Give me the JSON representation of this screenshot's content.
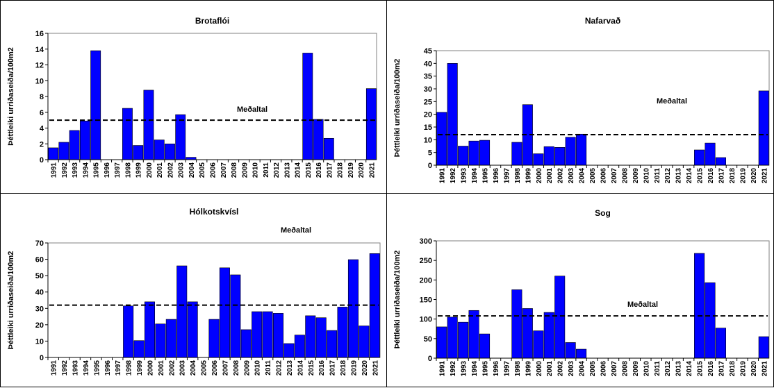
{
  "chart_data": [
    {
      "type": "bar",
      "title": "Brotaflói",
      "ylabel": "Þéttleiki urriðaseiða/100m2",
      "ylim": [
        0,
        16
      ],
      "yticks": [
        0,
        2,
        4,
        6,
        8,
        10,
        12,
        14,
        16
      ],
      "categories": [
        "1991",
        "1992",
        "1993",
        "1994",
        "1995",
        "1996",
        "1997",
        "1998",
        "1999",
        "2000",
        "2001",
        "2002",
        "2003",
        "2004",
        "2005",
        "2006",
        "2007",
        "2008",
        "2009",
        "2010",
        "2011",
        "2012",
        "2013",
        "2014",
        "2015",
        "2016",
        "2017",
        "2018",
        "2019",
        "2020",
        "2021"
      ],
      "values": [
        1.5,
        2.2,
        3.7,
        4.9,
        13.8,
        0,
        0,
        6.5,
        1.8,
        8.8,
        2.5,
        2.0,
        5.7,
        0.3,
        0,
        0,
        0,
        0,
        0,
        0,
        0,
        0,
        0,
        0,
        13.5,
        5.1,
        2.7,
        0,
        0,
        0,
        9.0
      ],
      "average": {
        "label": "Meðaltal",
        "value": 5.0
      },
      "bar_color": "#0000ff"
    },
    {
      "type": "bar",
      "title": "Nafarvað",
      "ylabel": "Þéttleiki urriðaseiða/100m2",
      "ylim": [
        0,
        45
      ],
      "yticks": [
        0,
        5,
        10,
        15,
        20,
        25,
        30,
        35,
        40,
        45
      ],
      "categories": [
        "1991",
        "1992",
        "1993",
        "1994",
        "1995",
        "1996",
        "1997",
        "1998",
        "1999",
        "2000",
        "2001",
        "2002",
        "2003",
        "2004",
        "2005",
        "2006",
        "2007",
        "2008",
        "2009",
        "2010",
        "2011",
        "2012",
        "2013",
        "2014",
        "2015",
        "2016",
        "2017",
        "2018",
        "2019",
        "2020",
        "2021"
      ],
      "values": [
        20.8,
        40.0,
        7.5,
        9.5,
        9.8,
        0,
        0,
        9.0,
        23.8,
        4.5,
        7.3,
        7.0,
        11.0,
        12.2,
        0,
        0,
        0,
        0,
        0,
        0,
        0,
        0,
        0,
        0,
        6.0,
        8.7,
        3.0,
        0,
        0,
        0,
        29.2
      ],
      "average": {
        "label": "Meðaltal",
        "value": 12.0
      },
      "bar_color": "#0000ff"
    },
    {
      "type": "bar",
      "title": "Hólkotskvísl",
      "ylabel": "Þéttleiki urriðaseiða/100m2",
      "ylim": [
        0,
        70
      ],
      "yticks": [
        0,
        10,
        20,
        30,
        40,
        50,
        60,
        70
      ],
      "categories": [
        "1991",
        "1992",
        "1993",
        "1994",
        "1995",
        "1996",
        "1997",
        "1998",
        "1999",
        "2000",
        "2001",
        "2002",
        "2003",
        "2004",
        "2005",
        "2006",
        "2007",
        "2008",
        "2009",
        "2010",
        "2011",
        "2012",
        "2013",
        "2014",
        "2015",
        "2016",
        "2017",
        "2018",
        "2019",
        "2020",
        "2021"
      ],
      "values": [
        0,
        0,
        0,
        0,
        0,
        0,
        0,
        31.5,
        10.3,
        34.0,
        20.5,
        23.3,
        56.0,
        34.0,
        0,
        23.3,
        54.8,
        50.5,
        17.0,
        28.0,
        28.0,
        27.0,
        8.5,
        13.7,
        25.5,
        24.3,
        16.5,
        30.8,
        59.8,
        19.3,
        63.5
      ],
      "average": {
        "label": "Meðaltal",
        "value": 32.0
      },
      "bar_color": "#0000ff"
    },
    {
      "type": "bar",
      "title": "Sog",
      "ylabel": "Þéttleiki urriðaseiða/100m2",
      "ylim": [
        0,
        300
      ],
      "yticks": [
        0,
        50,
        100,
        150,
        200,
        250,
        300
      ],
      "categories": [
        "1991",
        "1992",
        "1993",
        "1994",
        "1995",
        "1996",
        "1997",
        "1998",
        "1999",
        "2000",
        "2001",
        "2002",
        "2003",
        "2004",
        "2005",
        "2006",
        "2007",
        "2008",
        "2009",
        "2010",
        "2011",
        "2012",
        "2013",
        "2014",
        "2015",
        "2016",
        "2017",
        "2018",
        "2019",
        "2020",
        "2021"
      ],
      "values": [
        80,
        105,
        92,
        122,
        62,
        0,
        0,
        175,
        127,
        70,
        117,
        210,
        40,
        23,
        0,
        0,
        0,
        0,
        0,
        0,
        0,
        0,
        0,
        0,
        268,
        193,
        77,
        0,
        0,
        0,
        55
      ],
      "average": {
        "label": "Meðaltal",
        "value": 108
      },
      "bar_color": "#0000ff"
    }
  ]
}
